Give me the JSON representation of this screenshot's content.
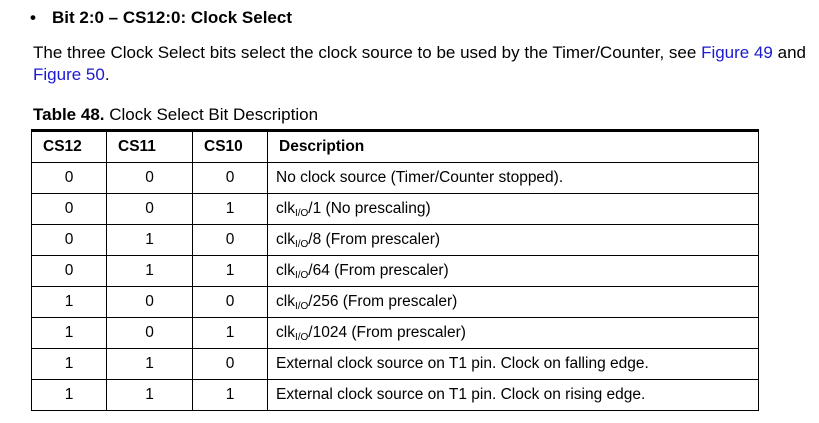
{
  "heading": {
    "bullet": "•",
    "text": "Bit 2:0 – CS12:0: Clock Select"
  },
  "paragraph": {
    "text_before": "The three Clock Select bits select the clock source to be used by the Timer/Counter, see ",
    "link1": "Figure 49",
    "text_middle": " and ",
    "link2": "Figure 50",
    "text_after": "."
  },
  "caption": {
    "number": "Table 48.",
    "title": "Clock Select Bit Description"
  },
  "table": {
    "headers": [
      "CS12",
      "CS11",
      "CS10",
      "Description"
    ],
    "rows": [
      {
        "cs12": "0",
        "cs11": "0",
        "cs10": "0",
        "desc": "No clock source (Timer/Counter stopped).",
        "clk": false
      },
      {
        "cs12": "0",
        "cs11": "0",
        "cs10": "1",
        "desc_pre": "clk",
        "desc_sub": "I/O",
        "desc_post": "/1 (No prescaling)",
        "clk": true
      },
      {
        "cs12": "0",
        "cs11": "1",
        "cs10": "0",
        "desc_pre": "clk",
        "desc_sub": "I/O",
        "desc_post": "/8 (From prescaler)",
        "clk": true
      },
      {
        "cs12": "0",
        "cs11": "1",
        "cs10": "1",
        "desc_pre": "clk",
        "desc_sub": "I/O",
        "desc_post": "/64 (From prescaler)",
        "clk": true
      },
      {
        "cs12": "1",
        "cs11": "0",
        "cs10": "0",
        "desc_pre": "clk",
        "desc_sub": "I/O",
        "desc_post": "/256 (From prescaler)",
        "clk": true
      },
      {
        "cs12": "1",
        "cs11": "0",
        "cs10": "1",
        "desc_pre": "clk",
        "desc_sub": "I/O",
        "desc_post": "/1024 (From prescaler)",
        "clk": true
      },
      {
        "cs12": "1",
        "cs11": "1",
        "cs10": "0",
        "desc": "External clock source on T1 pin. Clock on falling edge.",
        "clk": false
      },
      {
        "cs12": "1",
        "cs11": "1",
        "cs10": "1",
        "desc": "External clock source on T1 pin. Clock on rising edge.",
        "clk": false
      }
    ]
  },
  "colors": {
    "link": "#1a1ad0",
    "text": "#000000"
  }
}
